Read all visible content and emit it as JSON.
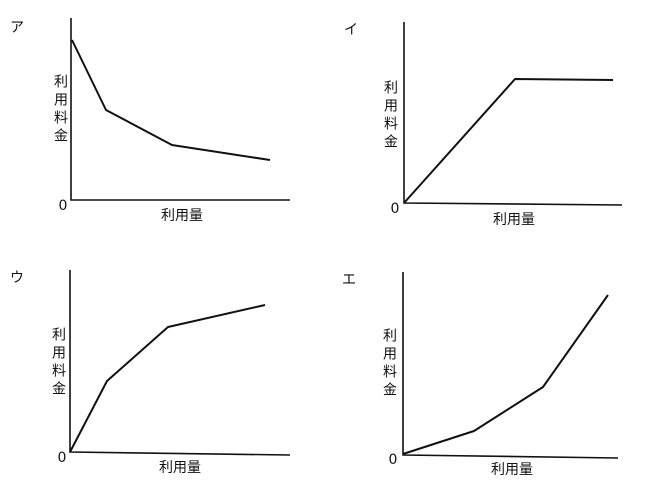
{
  "panels": [
    {
      "label": "ア",
      "y_label": "利用料金",
      "x_label": "利用量",
      "origin": "0"
    },
    {
      "label": "イ",
      "y_label": "利用料金",
      "x_label": "利用量",
      "origin": "0"
    },
    {
      "label": "ウ",
      "y_label": "利用料金",
      "x_label": "利用量",
      "origin": "0"
    },
    {
      "label": "エ",
      "y_label": "利用料金",
      "x_label": "利用量",
      "origin": "0"
    }
  ]
}
